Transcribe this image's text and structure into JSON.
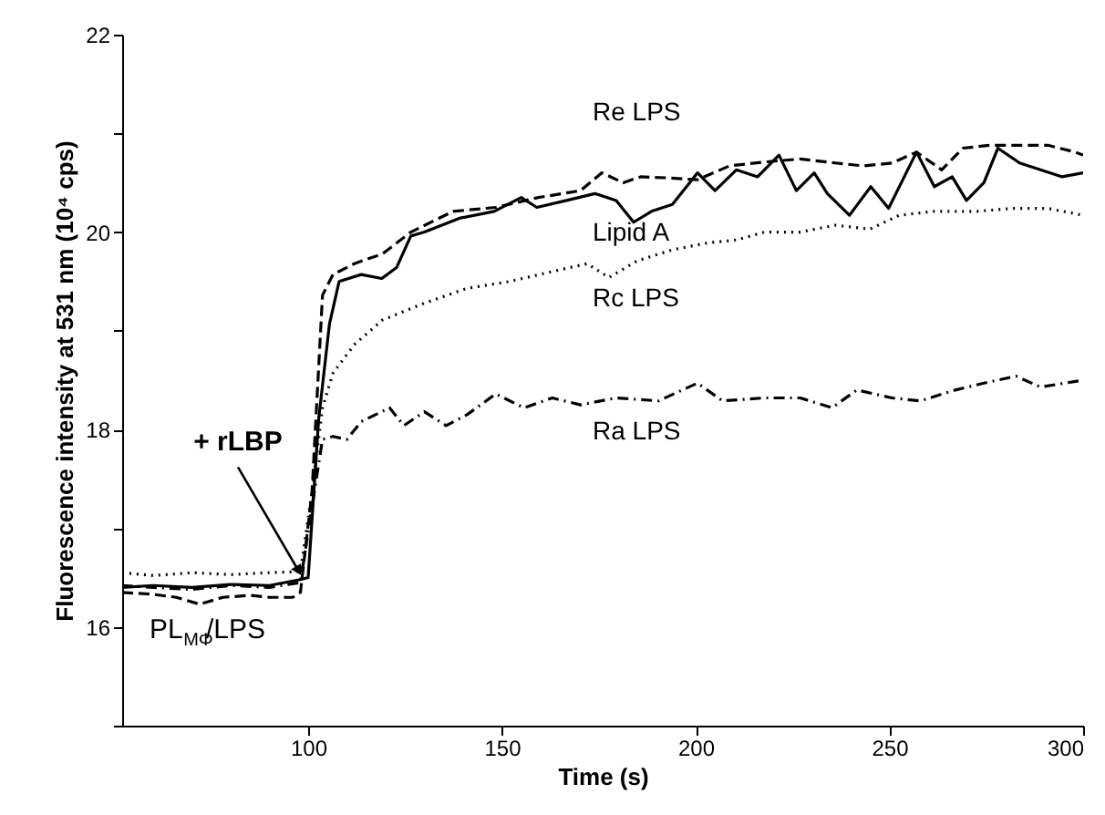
{
  "chart_data": {
    "type": "line",
    "xlabel": "Time (s)",
    "ylabel": "Fluorescence intensity at 531 nm (10⁴ cps)",
    "xlim": [
      52,
      300
    ],
    "ylim": [
      15,
      22
    ],
    "xticks": [
      100,
      150,
      200,
      250,
      300
    ],
    "yticks": [
      {
        "value": 15,
        "label": null
      },
      16,
      {
        "value": 17,
        "label": null
      },
      18,
      {
        "value": 19,
        "label": null
      },
      20,
      {
        "value": 21,
        "label": null
      },
      22
    ],
    "grid": false,
    "marker": "none",
    "series": [
      {
        "name": "Re LPS",
        "color": "#000000",
        "line_style": "dashed",
        "x": [
          52,
          60,
          66,
          72,
          78,
          85,
          90,
          96,
          98,
          101,
          103.7,
          106.4,
          111.9,
          119.2,
          126.5,
          137.4,
          148.4,
          159.4,
          170.3,
          175.8,
          181.3,
          185.8,
          192.2,
          200.5,
          208.7,
          217.8,
          227,
          236,
          243.4,
          250.7,
          257,
          263.5,
          269,
          276,
          283.6,
          290.9,
          298,
          300
        ],
        "values": [
          16.35,
          16.33,
          16.3,
          16.23,
          16.3,
          16.32,
          16.3,
          16.3,
          16.35,
          17.37,
          19.36,
          19.57,
          19.68,
          19.78,
          20.0,
          20.21,
          20.25,
          20.35,
          20.42,
          20.6,
          20.5,
          20.56,
          20.55,
          20.53,
          20.67,
          20.71,
          20.74,
          20.7,
          20.67,
          20.7,
          20.81,
          20.63,
          20.85,
          20.88,
          20.88,
          20.88,
          20.81,
          20.78
        ]
      },
      {
        "name": "Lipid A",
        "color": "#000000",
        "line_style": "solid",
        "x": [
          52,
          60,
          70,
          80,
          90,
          98,
          100,
          102.7,
          105.5,
          108,
          113.7,
          119,
          122.8,
          126.5,
          130,
          139,
          148,
          155,
          159,
          166.7,
          174,
          179.5,
          184,
          188.6,
          194,
          200.5,
          205,
          210.5,
          216,
          221.5,
          226,
          230.6,
          234,
          239.7,
          245.2,
          249.8,
          257,
          261.6,
          266.2,
          269.9,
          274.4,
          278,
          283.6,
          289,
          294.6,
          300
        ],
        "values": [
          16.4,
          16.42,
          16.4,
          16.43,
          16.42,
          16.48,
          16.5,
          18.1,
          19.07,
          19.5,
          19.57,
          19.53,
          19.64,
          19.96,
          20.0,
          20.14,
          20.21,
          20.35,
          20.25,
          20.32,
          20.39,
          20.32,
          20.1,
          20.21,
          20.28,
          20.6,
          20.42,
          20.63,
          20.56,
          20.78,
          20.42,
          20.6,
          20.39,
          20.17,
          20.46,
          20.24,
          20.81,
          20.46,
          20.56,
          20.32,
          20.5,
          20.85,
          20.7,
          20.63,
          20.56,
          20.6
        ]
      },
      {
        "name": "Rc LPS",
        "color": "#000000",
        "line_style": "dotted",
        "x": [
          52,
          60,
          70,
          80,
          90,
          98,
          101,
          103.7,
          106.4,
          111.9,
          119.2,
          130,
          141,
          152,
          163,
          172,
          177.6,
          185,
          194,
          203,
          210.5,
          217.8,
          227,
          236,
          245,
          252.5,
          261.6,
          272.6,
          281.7,
          290.9,
          300
        ],
        "values": [
          16.55,
          16.52,
          16.55,
          16.53,
          16.55,
          16.56,
          17.37,
          18.22,
          18.57,
          18.86,
          19.11,
          19.28,
          19.43,
          19.5,
          19.6,
          19.68,
          19.54,
          19.71,
          19.82,
          19.89,
          19.92,
          20.0,
          20.0,
          20.07,
          20.03,
          20.17,
          20.21,
          20.21,
          20.24,
          20.24,
          20.17
        ]
      },
      {
        "name": "Ra LPS",
        "color": "#000000",
        "line_style": "dashdot",
        "x": [
          52,
          60,
          70,
          80,
          90,
          98,
          101,
          103.7,
          106.4,
          110,
          113.7,
          121,
          124.7,
          130,
          135.6,
          141,
          148.4,
          155.7,
          163,
          170.3,
          179.5,
          190.4,
          200.5,
          206.9,
          217.8,
          227,
          235.2,
          241.6,
          250.7,
          258,
          267,
          274.4,
          282.7,
          289,
          300
        ],
        "values": [
          16.42,
          16.4,
          16.38,
          16.42,
          16.4,
          16.45,
          17.22,
          17.9,
          17.93,
          17.9,
          18.08,
          18.22,
          18.04,
          18.18,
          18.04,
          18.15,
          18.36,
          18.22,
          18.32,
          18.25,
          18.32,
          18.29,
          18.47,
          18.29,
          18.32,
          18.32,
          18.22,
          18.4,
          18.32,
          18.29,
          18.4,
          18.47,
          18.54,
          18.43,
          18.5
        ]
      }
    ],
    "annotations": [
      {
        "text": "+ rLBP",
        "x": 98,
        "y": 16.5
      },
      "PL$_{MΦ}$/LPS"
    ]
  }
}
